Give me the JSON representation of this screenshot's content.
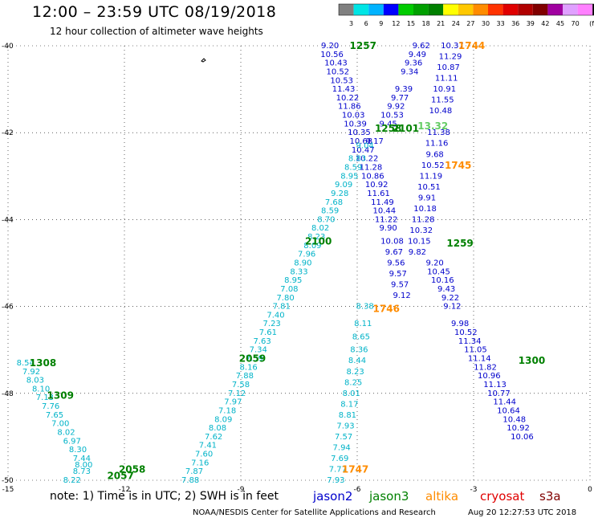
{
  "header": {
    "title": "12:00 – 23:59 UTC 08/19/2018",
    "subtitle": "12 hour collection of altimeter wave heights"
  },
  "colorbar": {
    "swatches": [
      "#808080",
      "#00e5e5",
      "#00b3ff",
      "#0000ff",
      "#00cc00",
      "#00a000",
      "#008000",
      "#ffff00",
      "#ffc800",
      "#ff8c00",
      "#ff3300",
      "#e00000",
      "#b00000",
      "#800000",
      "#a000a0",
      "#e0a0ff",
      "#ff80ff",
      "#000000"
    ],
    "labels": [
      "3",
      "6",
      "9",
      "12",
      "15",
      "18",
      "21",
      "24",
      "27",
      "30",
      "33",
      "36",
      "39",
      "42",
      "45",
      "70",
      "(ft)"
    ]
  },
  "axes": {
    "x_ticks": [
      "-15",
      "-12",
      "-9",
      "-6",
      "-3",
      "0"
    ],
    "y_ticks": [
      "-40",
      "-42",
      "-44",
      "-46",
      "-48",
      "-50"
    ]
  },
  "footer": {
    "note": "note:  1) Time is in UTC;  2) SWH is in feet",
    "credit": "NOAA/NESDIS Center for Satellite Applications and Research",
    "timestamp": "Aug 20 12:27:53 UTC 2018"
  },
  "legend": [
    {
      "name": "jason2",
      "color": "#0000cc"
    },
    {
      "name": "jason3",
      "color": "#008000"
    },
    {
      "name": "altika",
      "color": "#ff8c00"
    },
    {
      "name": "cryosat",
      "color": "#e00000"
    },
    {
      "name": "s3a",
      "color": "#800000"
    }
  ],
  "colors": {
    "jason2": "#0000cc",
    "jason3": "#008000",
    "altika": "#ff8c00",
    "s3a_labels": "#008000",
    "sat_cyan": "#00b3c8",
    "sat_blue": "#0000cc",
    "sat_lgreen": "#66cc66"
  },
  "tracks": [
    {
      "name": "track-a",
      "color": "#0000cc",
      "points": [
        {
          "lon": -6.7,
          "lat": -40.0,
          "v": "9.20"
        },
        {
          "lon": -6.65,
          "lat": -40.2,
          "v": "10.56"
        },
        {
          "lon": -6.55,
          "lat": -40.4,
          "v": "10.43"
        },
        {
          "lon": -6.5,
          "lat": -40.6,
          "v": "10.52"
        },
        {
          "lon": -6.4,
          "lat": -40.8,
          "v": "10.53"
        },
        {
          "lon": -6.35,
          "lat": -41.0,
          "v": "11.43"
        },
        {
          "lon": -6.25,
          "lat": -41.2,
          "v": "10.22"
        },
        {
          "lon": -6.2,
          "lat": -41.4,
          "v": "11.86"
        },
        {
          "lon": -6.1,
          "lat": -41.6,
          "v": "10.03"
        },
        {
          "lon": -6.05,
          "lat": -41.8,
          "v": "10.39"
        },
        {
          "lon": -5.95,
          "lat": -42.0,
          "v": "10.35"
        }
      ]
    },
    {
      "name": "track-b",
      "color": "#0000cc",
      "points": [
        {
          "lon": -5.9,
          "lat": -42.2,
          "v": "10.68"
        },
        {
          "lon": -5.85,
          "lat": -42.4,
          "v": "10.47"
        },
        {
          "lon": -5.75,
          "lat": -42.6,
          "v": "10.22"
        },
        {
          "lon": -5.65,
          "lat": -42.8,
          "v": "11.28"
        },
        {
          "lon": -5.6,
          "lat": -43.0,
          "v": "10.86"
        },
        {
          "lon": -5.5,
          "lat": -43.2,
          "v": "10.92"
        },
        {
          "lon": -5.45,
          "lat": -43.4,
          "v": "11.61"
        },
        {
          "lon": -5.35,
          "lat": -43.6,
          "v": "11.49"
        },
        {
          "lon": -5.3,
          "lat": -43.8,
          "v": "10.44"
        },
        {
          "lon": -5.25,
          "lat": -44.0,
          "v": "11.22"
        },
        {
          "lon": -5.2,
          "lat": -44.2,
          "v": "9.90"
        },
        {
          "lon": -5.1,
          "lat": -44.5,
          "v": "10.08"
        },
        {
          "lon": -5.05,
          "lat": -44.75,
          "v": "9.67"
        },
        {
          "lon": -5.0,
          "lat": -45.0,
          "v": "9.56"
        },
        {
          "lon": -4.95,
          "lat": -45.25,
          "v": "9.57"
        },
        {
          "lon": -4.9,
          "lat": -45.5,
          "v": "9.57"
        },
        {
          "lon": -4.85,
          "lat": -45.75,
          "v": "9.12"
        }
      ]
    },
    {
      "name": "track-c",
      "color": "#0000cc",
      "points": [
        {
          "lon": -4.35,
          "lat": -40.0,
          "v": "9.62"
        },
        {
          "lon": -4.45,
          "lat": -40.2,
          "v": "9.49"
        },
        {
          "lon": -4.55,
          "lat": -40.4,
          "v": "9.36"
        },
        {
          "lon": -4.65,
          "lat": -40.6,
          "v": "9.34"
        },
        {
          "lon": -4.8,
          "lat": -41.0,
          "v": "9.39"
        },
        {
          "lon": -4.9,
          "lat": -41.2,
          "v": "9.77"
        },
        {
          "lon": -5.0,
          "lat": -41.4,
          "v": "9.92"
        },
        {
          "lon": -5.1,
          "lat": -41.6,
          "v": "10.53"
        },
        {
          "lon": -5.2,
          "lat": -41.8,
          "v": "9.45"
        },
        {
          "lon": -5.55,
          "lat": -42.2,
          "v": "9.17"
        }
      ]
    },
    {
      "name": "track-d",
      "color": "#0000cc",
      "points": [
        {
          "lon": -3.55,
          "lat": -40.0,
          "v": "10.37"
        },
        {
          "lon": -3.6,
          "lat": -40.25,
          "v": "11.29"
        },
        {
          "lon": -3.65,
          "lat": -40.5,
          "v": "10.87"
        },
        {
          "lon": -3.7,
          "lat": -40.75,
          "v": "11.11"
        },
        {
          "lon": -3.75,
          "lat": -41.0,
          "v": "10.91"
        },
        {
          "lon": -3.8,
          "lat": -41.25,
          "v": "11.55"
        },
        {
          "lon": -3.85,
          "lat": -41.5,
          "v": "10.48"
        },
        {
          "lon": -3.9,
          "lat": -42.0,
          "v": "11.38"
        },
        {
          "lon": -3.95,
          "lat": -42.25,
          "v": "11.16"
        },
        {
          "lon": -4.0,
          "lat": -42.5,
          "v": "9.68"
        },
        {
          "lon": -4.05,
          "lat": -42.75,
          "v": "10.52"
        },
        {
          "lon": -4.1,
          "lat": -43.0,
          "v": "11.19"
        },
        {
          "lon": -4.15,
          "lat": -43.25,
          "v": "10.51"
        },
        {
          "lon": -4.2,
          "lat": -43.5,
          "v": "9.91"
        },
        {
          "lon": -4.25,
          "lat": -43.75,
          "v": "10.18"
        },
        {
          "lon": -4.3,
          "lat": -44.0,
          "v": "11.28"
        },
        {
          "lon": -4.35,
          "lat": -44.25,
          "v": "10.32"
        },
        {
          "lon": -4.4,
          "lat": -44.5,
          "v": "10.15"
        },
        {
          "lon": -4.45,
          "lat": -44.75,
          "v": "9.82"
        }
      ]
    },
    {
      "name": "track-e",
      "color": "#0000cc",
      "points": [
        {
          "lon": -4.0,
          "lat": -45.0,
          "v": "9.20"
        },
        {
          "lon": -3.9,
          "lat": -45.2,
          "v": "10.45"
        },
        {
          "lon": -3.8,
          "lat": -45.4,
          "v": "10.16"
        },
        {
          "lon": -3.7,
          "lat": -45.6,
          "v": "9.43"
        },
        {
          "lon": -3.6,
          "lat": -45.8,
          "v": "9.22"
        },
        {
          "lon": -3.55,
          "lat": -46.0,
          "v": "9.12"
        },
        {
          "lon": -3.35,
          "lat": -46.4,
          "v": "9.98"
        },
        {
          "lon": -3.2,
          "lat": -46.6,
          "v": "10.52"
        },
        {
          "lon": -3.1,
          "lat": -46.8,
          "v": "11.34"
        },
        {
          "lon": -2.95,
          "lat": -47.0,
          "v": "11.05"
        },
        {
          "lon": -2.85,
          "lat": -47.2,
          "v": "11.14"
        },
        {
          "lon": -2.7,
          "lat": -47.4,
          "v": "11.82"
        },
        {
          "lon": -2.6,
          "lat": -47.6,
          "v": "10.96"
        },
        {
          "lon": -2.45,
          "lat": -47.8,
          "v": "11.13"
        },
        {
          "lon": -2.35,
          "lat": -48.0,
          "v": "10.77"
        },
        {
          "lon": -2.2,
          "lat": -48.2,
          "v": "11.44"
        },
        {
          "lon": -2.1,
          "lat": -48.4,
          "v": "10.64"
        },
        {
          "lon": -1.95,
          "lat": -48.6,
          "v": "10.48"
        },
        {
          "lon": -1.85,
          "lat": -48.8,
          "v": "10.92"
        },
        {
          "lon": -1.75,
          "lat": -49.0,
          "v": "10.06"
        }
      ]
    },
    {
      "name": "track-f",
      "color": "#00b3c8",
      "points": [
        {
          "lon": -5.8,
          "lat": -46.0,
          "v": "8.38"
        },
        {
          "lon": -5.85,
          "lat": -46.4,
          "v": "8.11"
        },
        {
          "lon": -5.9,
          "lat": -46.7,
          "v": "8.65"
        },
        {
          "lon": -5.95,
          "lat": -47.0,
          "v": "8.36"
        },
        {
          "lon": -6.0,
          "lat": -47.25,
          "v": "8.44"
        },
        {
          "lon": -6.05,
          "lat": -47.5,
          "v": "8.23"
        },
        {
          "lon": -6.1,
          "lat": -47.75,
          "v": "8.25"
        },
        {
          "lon": -6.15,
          "lat": -48.0,
          "v": "8.01"
        },
        {
          "lon": -6.2,
          "lat": -48.25,
          "v": "8.17"
        },
        {
          "lon": -6.25,
          "lat": -48.5,
          "v": "8.81"
        },
        {
          "lon": -6.3,
          "lat": -48.75,
          "v": "7.93"
        },
        {
          "lon": -6.35,
          "lat": -49.0,
          "v": "7.57"
        },
        {
          "lon": -6.4,
          "lat": -49.25,
          "v": "7.94"
        },
        {
          "lon": -6.45,
          "lat": -49.5,
          "v": "7.69"
        },
        {
          "lon": -6.5,
          "lat": -49.75,
          "v": "7.77"
        },
        {
          "lon": -6.55,
          "lat": -50.0,
          "v": "7.93"
        }
      ]
    },
    {
      "name": "track-g",
      "color": "#00b3c8",
      "points": [
        {
          "lon": -5.8,
          "lat": -42.3,
          "v": "9.04"
        },
        {
          "lon": -6.0,
          "lat": -42.6,
          "v": "8.83"
        },
        {
          "lon": -6.1,
          "lat": -42.8,
          "v": "8.59"
        },
        {
          "lon": -6.2,
          "lat": -43.0,
          "v": "8.95"
        },
        {
          "lon": -6.35,
          "lat": -43.2,
          "v": "9.09"
        },
        {
          "lon": -6.45,
          "lat": -43.4,
          "v": "9.28"
        },
        {
          "lon": -6.6,
          "lat": -43.6,
          "v": "7.68"
        },
        {
          "lon": -6.7,
          "lat": -43.8,
          "v": "8.59"
        },
        {
          "lon": -6.8,
          "lat": -44.0,
          "v": "8.70"
        },
        {
          "lon": -6.95,
          "lat": -44.2,
          "v": "8.02"
        },
        {
          "lon": -7.05,
          "lat": -44.4,
          "v": "8.23"
        },
        {
          "lon": -7.15,
          "lat": -44.6,
          "v": "8.09"
        },
        {
          "lon": -7.3,
          "lat": -44.8,
          "v": "7.96"
        },
        {
          "lon": -7.4,
          "lat": -45.0,
          "v": "8.90"
        },
        {
          "lon": -7.5,
          "lat": -45.2,
          "v": "8.33"
        },
        {
          "lon": -7.65,
          "lat": -45.4,
          "v": "8.95"
        },
        {
          "lon": -7.75,
          "lat": -45.6,
          "v": "7.08"
        },
        {
          "lon": -7.85,
          "lat": -45.8,
          "v": "7.80"
        },
        {
          "lon": -7.95,
          "lat": -46.0,
          "v": "7.81"
        },
        {
          "lon": -8.1,
          "lat": -46.2,
          "v": "7.40"
        },
        {
          "lon": -8.2,
          "lat": -46.4,
          "v": "7.23"
        },
        {
          "lon": -8.3,
          "lat": -46.6,
          "v": "7.61"
        },
        {
          "lon": -8.45,
          "lat": -46.8,
          "v": "7.63"
        },
        {
          "lon": -8.55,
          "lat": -47.0,
          "v": "7.34"
        },
        {
          "lon": -8.65,
          "lat": -47.2,
          "v": "7.59"
        },
        {
          "lon": -8.8,
          "lat": -47.4,
          "v": "8.16"
        },
        {
          "lon": -8.9,
          "lat": -47.6,
          "v": "7.88"
        },
        {
          "lon": -9.0,
          "lat": -47.8,
          "v": "7.58"
        }
      ]
    },
    {
      "name": "track-h",
      "color": "#00b3c8",
      "points": [
        {
          "lon": -9.1,
          "lat": -48.0,
          "v": "7.12"
        },
        {
          "lon": -9.2,
          "lat": -48.2,
          "v": "7.97"
        },
        {
          "lon": -9.35,
          "lat": -48.4,
          "v": "7.18"
        },
        {
          "lon": -9.45,
          "lat": -48.6,
          "v": "8.09"
        },
        {
          "lon": -9.6,
          "lat": -48.8,
          "v": "8.08"
        },
        {
          "lon": -9.7,
          "lat": -49.0,
          "v": "7.62"
        },
        {
          "lon": -9.85,
          "lat": -49.2,
          "v": "7.41"
        },
        {
          "lon": -9.95,
          "lat": -49.4,
          "v": "7.60"
        },
        {
          "lon": -10.05,
          "lat": -49.6,
          "v": "7.16"
        },
        {
          "lon": -10.2,
          "lat": -49.8,
          "v": "7.87"
        },
        {
          "lon": -10.3,
          "lat": -50.0,
          "v": "7.88"
        }
      ]
    },
    {
      "name": "track-i",
      "color": "#00b3c8",
      "points": [
        {
          "lon": -14.55,
          "lat": -47.3,
          "v": "8.54"
        },
        {
          "lon": -14.4,
          "lat": -47.5,
          "v": "7.92"
        },
        {
          "lon": -14.3,
          "lat": -47.7,
          "v": "8.03"
        },
        {
          "lon": -14.15,
          "lat": -47.9,
          "v": "8.10"
        },
        {
          "lon": -14.05,
          "lat": -48.1,
          "v": "7.13"
        },
        {
          "lon": -13.9,
          "lat": -48.3,
          "v": "7.76"
        },
        {
          "lon": -13.8,
          "lat": -48.5,
          "v": "7.65"
        },
        {
          "lon": -13.65,
          "lat": -48.7,
          "v": "7.00"
        },
        {
          "lon": -13.5,
          "lat": -48.9,
          "v": "8.02"
        },
        {
          "lon": -13.35,
          "lat": -49.1,
          "v": "6.97"
        },
        {
          "lon": -13.2,
          "lat": -49.3,
          "v": "8.30"
        },
        {
          "lon": -13.1,
          "lat": -49.5,
          "v": "7.44"
        },
        {
          "lon": -13.05,
          "lat": -49.65,
          "v": "8.00"
        },
        {
          "lon": -13.1,
          "lat": -49.8,
          "v": "8.73"
        },
        {
          "lon": -13.35,
          "lat": -50.0,
          "v": "8.22"
        }
      ]
    }
  ],
  "pass_labels": [
    {
      "lon": -5.85,
      "lat": -40.0,
      "text": "1257",
      "color": "#008000"
    },
    {
      "lon": -3.05,
      "lat": -40.0,
      "text": "1744",
      "color": "#ff8c00"
    },
    {
      "lon": -5.2,
      "lat": -41.9,
      "text": "1258",
      "color": "#008000"
    },
    {
      "lon": -4.75,
      "lat": -41.9,
      "text": "2101",
      "color": "#008000"
    },
    {
      "lon": -4.05,
      "lat": -41.85,
      "text": "13.32",
      "color": "#66cc66"
    },
    {
      "lon": -3.4,
      "lat": -42.75,
      "text": "1745",
      "color": "#ff8c00"
    },
    {
      "lon": -7.0,
      "lat": -44.5,
      "text": "2100",
      "color": "#008000"
    },
    {
      "lon": -3.35,
      "lat": -44.55,
      "text": "1259",
      "color": "#008000"
    },
    {
      "lon": -5.25,
      "lat": -46.05,
      "text": "1746",
      "color": "#ff8c00"
    },
    {
      "lon": -8.7,
      "lat": -47.2,
      "text": "2059",
      "color": "#008000"
    },
    {
      "lon": -1.5,
      "lat": -47.25,
      "text": "1300",
      "color": "#008000"
    },
    {
      "lon": -14.1,
      "lat": -47.3,
      "text": "1308",
      "color": "#008000"
    },
    {
      "lon": -13.65,
      "lat": -48.05,
      "text": "1309",
      "color": "#008000"
    },
    {
      "lon": -11.8,
      "lat": -49.75,
      "text": "2058",
      "color": "#008000"
    },
    {
      "lon": -12.1,
      "lat": -49.9,
      "text": "2057",
      "color": "#008000"
    },
    {
      "lon": -6.05,
      "lat": -49.75,
      "text": "1747",
      "color": "#ff8c00"
    }
  ]
}
